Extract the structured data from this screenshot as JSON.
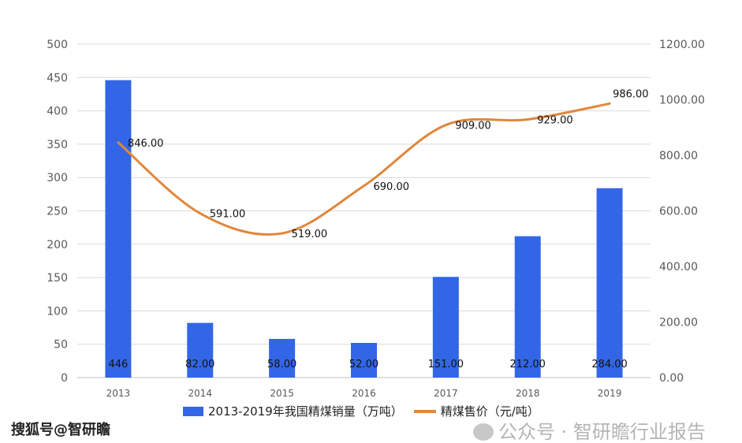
{
  "chart_data": {
    "type": "bar",
    "categories": [
      "2013",
      "2014",
      "2015",
      "2016",
      "2017",
      "2018",
      "2019"
    ],
    "series": [
      {
        "name": "2013-2019年我国精煤销量（万吨）",
        "type": "bar",
        "axis": "left",
        "values": [
          446,
          82,
          58,
          52,
          151,
          212,
          284
        ],
        "labels": [
          "446",
          "82.00",
          "58.00",
          "52.00",
          "151.00",
          "212.00",
          "284.00"
        ],
        "color": "#3366e6"
      },
      {
        "name": "精煤售价（元/吨）",
        "type": "line",
        "axis": "right",
        "values": [
          846,
          591,
          519,
          690,
          909,
          929,
          986
        ],
        "labels": [
          "846.00",
          "591.00",
          "519.00",
          "690.00",
          "909.00",
          "929.00",
          "986.00"
        ],
        "color": "#e0873a"
      }
    ],
    "ylim": [
      0,
      500
    ],
    "y_ticks": [
      "0",
      "50",
      "100",
      "150",
      "200",
      "250",
      "300",
      "350",
      "400",
      "450",
      "500"
    ],
    "y2lim": [
      0,
      1200
    ],
    "y2_ticks": [
      "0.00",
      "200.00",
      "400.00",
      "600.00",
      "800.00",
      "1000.00",
      "1200.00"
    ],
    "grid": true,
    "legend": "bottom"
  },
  "watermarks": {
    "left": "搜狐号@智研瞻",
    "right": "公众号 · 智研瞻行业报告"
  }
}
